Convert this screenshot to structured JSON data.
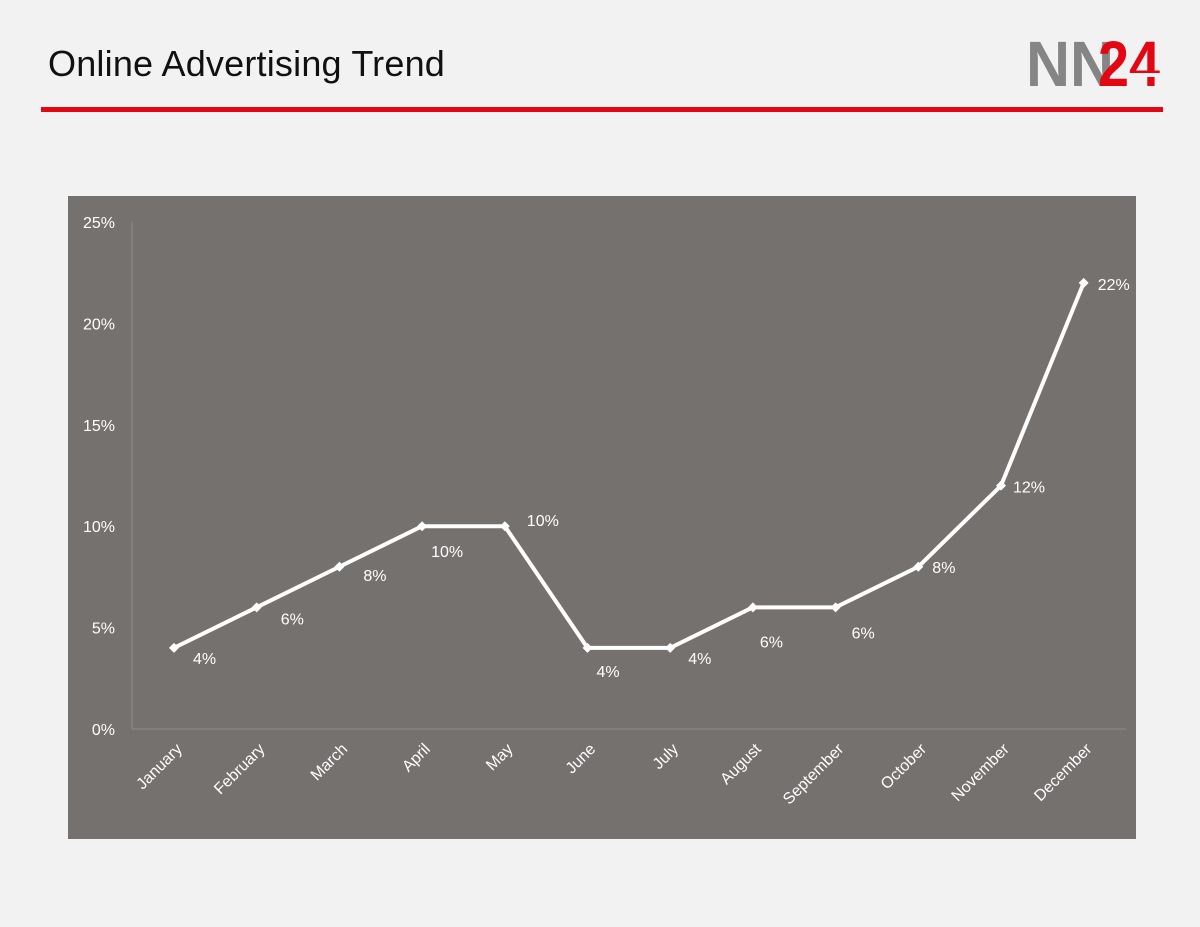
{
  "page": {
    "title": "Online Advertising Trend"
  },
  "logo": {
    "text_gray": "NN",
    "text_red": "24"
  },
  "colors": {
    "background": "#f2f2f2",
    "title": "#111111",
    "accent": "#e30613",
    "logo_gray": "#858585",
    "plot_bg": "#75716f",
    "line": "#ffffff",
    "axis_text": "#ffffff",
    "gridline": "#8f8b89"
  },
  "chart_data": {
    "type": "line",
    "title": "",
    "xlabel": "",
    "ylabel": "",
    "categories": [
      "January",
      "February",
      "March",
      "April",
      "May",
      "June",
      "July",
      "August",
      "September",
      "October",
      "November",
      "December"
    ],
    "series": [
      {
        "values": [
          4,
          6,
          8,
          10,
          10,
          4,
          4,
          6,
          6,
          8,
          12,
          22
        ],
        "data_labels": [
          "4%",
          "6%",
          "8%",
          "10%",
          "10%",
          "4%",
          "4%",
          "6%",
          "6%",
          "8%",
          "12%",
          "22%"
        ],
        "marker": "diamond"
      }
    ],
    "ylim": [
      0,
      25
    ],
    "yticks": [
      0,
      5,
      10,
      15,
      20,
      25
    ],
    "ytick_labels": [
      "0%",
      "5%",
      "10%",
      "15%",
      "20%",
      "25%"
    ],
    "grid": false,
    "legend": "none"
  }
}
